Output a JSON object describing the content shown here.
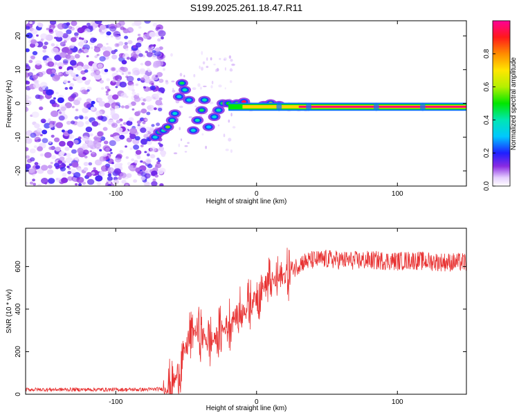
{
  "chart_data": [
    {
      "type": "heatmap",
      "title": "S199.2025.261.18.47.R11",
      "xlabel": "Height of straight line (km)",
      "ylabel": "Frequency (Hz)",
      "xlim": [
        -164,
        149
      ],
      "ylim": [
        -24.5,
        24.5
      ],
      "xticks": [
        -100,
        0,
        100
      ],
      "yticks": [
        -20,
        -10,
        0,
        10,
        20
      ],
      "colorbar": {
        "label": "Normalized spectral amplitude",
        "range": [
          0,
          1
        ],
        "ticks": [
          "0.0",
          "0.2",
          "0.4",
          "0.6",
          "0.8"
        ],
        "tick_values": [
          0,
          0.2,
          0.4,
          0.6,
          0.8
        ]
      },
      "features": {
        "noise_region_x": [
          -164,
          -66
        ],
        "ridge_start_x": -72,
        "ridge_start_freq": -10,
        "ridge_end_x": -20,
        "ridge_end_freq": 0,
        "carrier_line_x": [
          -20,
          149
        ],
        "carrier_line_freq": -1
      },
      "ridge_points": [
        {
          "x": -72,
          "y": -10,
          "a": 0.35
        },
        {
          "x": -69,
          "y": -8.5,
          "a": 0.45
        },
        {
          "x": -66,
          "y": -8,
          "a": 0.4
        },
        {
          "x": -63,
          "y": -7,
          "a": 0.55
        },
        {
          "x": -60,
          "y": -5,
          "a": 0.4
        },
        {
          "x": -58,
          "y": -3,
          "a": 0.35
        },
        {
          "x": -55,
          "y": 2,
          "a": 0.35
        },
        {
          "x": -53,
          "y": 6,
          "a": 0.45
        },
        {
          "x": -51,
          "y": 4,
          "a": 0.4
        },
        {
          "x": -48,
          "y": 1,
          "a": 0.35
        },
        {
          "x": -45,
          "y": -8,
          "a": 0.35
        },
        {
          "x": -42,
          "y": -5,
          "a": 0.4
        },
        {
          "x": -39,
          "y": -2,
          "a": 0.45
        },
        {
          "x": -37,
          "y": 1,
          "a": 0.4
        },
        {
          "x": -34,
          "y": -7,
          "a": 0.3
        },
        {
          "x": -30,
          "y": -4,
          "a": 0.35
        },
        {
          "x": -27,
          "y": -2,
          "a": 0.4
        },
        {
          "x": -24,
          "y": 0,
          "a": 0.45
        },
        {
          "x": -20,
          "y": 0,
          "a": 0.5
        },
        {
          "x": -14,
          "y": 0,
          "a": 0.55
        },
        {
          "x": -9,
          "y": 0.5,
          "a": 0.95
        },
        {
          "x": -4,
          "y": -1,
          "a": 0.55
        },
        {
          "x": 5,
          "y": -0.5,
          "a": 0.6
        },
        {
          "x": 10,
          "y": 0,
          "a": 0.62
        },
        {
          "x": 16,
          "y": -0.5,
          "a": 0.65
        },
        {
          "x": 23,
          "y": -1,
          "a": 0.66
        },
        {
          "x": 30,
          "y": -1,
          "a": 0.75
        },
        {
          "x": 35,
          "y": -1,
          "a": 0.68
        }
      ],
      "carrier_band": [
        {
          "x0": -20,
          "x1": 149,
          "a": 0.25,
          "half_width_hz": 1.2
        },
        {
          "x0": -20,
          "x1": 149,
          "a": 0.5,
          "half_width_hz": 0.8
        },
        {
          "x0": -10,
          "x1": 149,
          "a": 0.72,
          "half_width_hz": 0.5
        },
        {
          "x0": 30,
          "x1": 149,
          "a": 0.97,
          "half_width_hz": 0.3
        }
      ]
    },
    {
      "type": "line",
      "title": "",
      "xlabel": "Height of straight line (km)",
      "ylabel": "SNR (10 * v/v)",
      "xlim": [
        -164,
        149
      ],
      "ylim": [
        0,
        780
      ],
      "xticks": [
        -100,
        0,
        100
      ],
      "yticks": [
        0,
        200,
        400,
        600
      ],
      "series": [
        {
          "name": "SNR",
          "color": "#e83232",
          "x": [
            -164,
            -140,
            -120,
            -100,
            -80,
            -66,
            -60,
            -56,
            -52,
            -48,
            -44,
            -40,
            -36,
            -32,
            -28,
            -24,
            -20,
            -16,
            -12,
            -8,
            -4,
            0,
            4,
            8,
            12,
            16,
            20,
            24,
            28,
            32,
            40,
            50,
            60,
            70,
            80,
            90,
            100,
            110,
            120,
            130,
            140,
            149
          ],
          "y": [
            22,
            22,
            22,
            22,
            22,
            25,
            45,
            90,
            180,
            260,
            300,
            290,
            260,
            250,
            270,
            300,
            330,
            360,
            380,
            400,
            430,
            470,
            500,
            520,
            530,
            540,
            560,
            580,
            600,
            620,
            630,
            635,
            630,
            628,
            630,
            628,
            625,
            630,
            625,
            622,
            620,
            620
          ]
        }
      ]
    }
  ],
  "colors": {
    "line": "#e83232",
    "noise": "#8a2be2",
    "axis": "#000000"
  }
}
